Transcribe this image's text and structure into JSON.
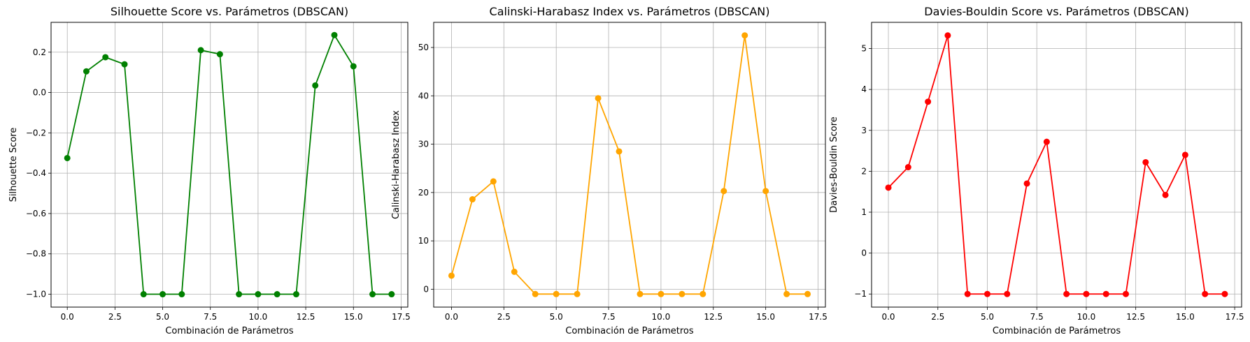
{
  "chart_data": [
    {
      "type": "line",
      "title": "Silhouette Score vs. Parámetros (DBSCAN)",
      "xlabel": "Combinación de Parámetros",
      "ylabel": "Silhouette Score",
      "color": "#008000",
      "grid": true,
      "xlim": [
        -0.85,
        17.85
      ],
      "ylim": [
        -1.064,
        0.348
      ],
      "xticks": [
        0.0,
        2.5,
        5.0,
        7.5,
        10.0,
        12.5,
        15.0,
        17.5
      ],
      "xtick_labels": [
        "0.0",
        "2.5",
        "5.0",
        "7.5",
        "10.0",
        "12.5",
        "15.0",
        "17.5"
      ],
      "yticks": [
        -1.0,
        -0.8,
        -0.6,
        -0.4,
        -0.2,
        0.0,
        0.2
      ],
      "ytick_labels": [
        "−1.0",
        "−0.8",
        "−0.6",
        "−0.4",
        "−0.2",
        "0.0",
        "0.2"
      ],
      "x": [
        0,
        1,
        2,
        3,
        4,
        5,
        6,
        7,
        8,
        9,
        10,
        11,
        12,
        13,
        14,
        15,
        16,
        17
      ],
      "y": [
        -0.325,
        0.105,
        0.175,
        0.14,
        -1.0,
        -1.0,
        -1.0,
        0.21,
        0.19,
        -1.0,
        -1.0,
        -1.0,
        -1.0,
        0.035,
        0.285,
        0.13,
        -1.0,
        -1.0
      ]
    },
    {
      "type": "line",
      "title": "Calinski-Harabasz Index vs. Parámetros (DBSCAN)",
      "xlabel": "Combinación de Parámetros",
      "ylabel": "Calinski-Harabasz Index",
      "color": "#ffa500",
      "grid": true,
      "xlim": [
        -0.85,
        17.85
      ],
      "ylim": [
        -3.7,
        55.2
      ],
      "xticks": [
        0.0,
        2.5,
        5.0,
        7.5,
        10.0,
        12.5,
        15.0,
        17.5
      ],
      "xtick_labels": [
        "0.0",
        "2.5",
        "5.0",
        "7.5",
        "10.0",
        "12.5",
        "15.0",
        "17.5"
      ],
      "yticks": [
        0,
        10,
        20,
        30,
        40,
        50
      ],
      "ytick_labels": [
        "0",
        "10",
        "20",
        "30",
        "40",
        "50"
      ],
      "x": [
        0,
        1,
        2,
        3,
        4,
        5,
        6,
        7,
        8,
        9,
        10,
        11,
        12,
        13,
        14,
        15,
        16,
        17
      ],
      "y": [
        2.8,
        18.6,
        22.3,
        3.6,
        -1.0,
        -1.0,
        -1.0,
        39.5,
        28.5,
        -1.0,
        -1.0,
        -1.0,
        -1.0,
        20.3,
        52.5,
        20.3,
        -1.0,
        -1.0
      ]
    },
    {
      "type": "line",
      "title": "Davies-Bouldin Score vs. Parámetros (DBSCAN)",
      "xlabel": "Combinación de Parámetros",
      "ylabel": "Davies-Bouldin Score",
      "color": "#ff0000",
      "grid": true,
      "xlim": [
        -0.85,
        17.85
      ],
      "ylim": [
        -1.32,
        5.64
      ],
      "xticks": [
        0.0,
        2.5,
        5.0,
        7.5,
        10.0,
        12.5,
        15.0,
        17.5
      ],
      "xtick_labels": [
        "0.0",
        "2.5",
        "5.0",
        "7.5",
        "10.0",
        "12.5",
        "15.0",
        "17.5"
      ],
      "yticks": [
        -1,
        0,
        1,
        2,
        3,
        4,
        5
      ],
      "ytick_labels": [
        "−1",
        "0",
        "1",
        "2",
        "3",
        "4",
        "5"
      ],
      "x": [
        0,
        1,
        2,
        3,
        4,
        5,
        6,
        7,
        8,
        9,
        10,
        11,
        12,
        13,
        14,
        15,
        16,
        17
      ],
      "y": [
        1.6,
        2.1,
        3.7,
        5.32,
        -1.0,
        -1.0,
        -1.0,
        1.7,
        2.72,
        -1.0,
        -1.0,
        -1.0,
        -1.0,
        2.22,
        1.42,
        2.4,
        -1.0,
        -1.0
      ]
    }
  ]
}
